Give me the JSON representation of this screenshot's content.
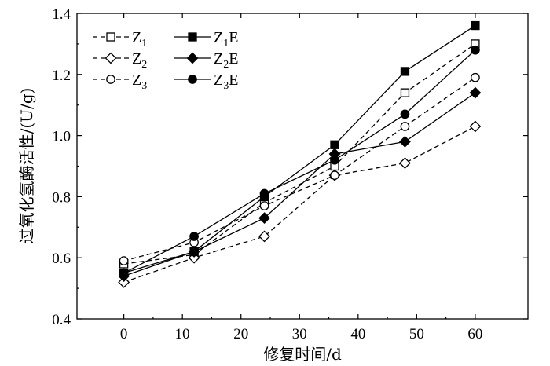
{
  "chart_data": {
    "type": "line",
    "title": "",
    "xlabel": "修复时间/d",
    "ylabel": "过氧化氢酶活性/(U/g)",
    "xlim": [
      -8,
      69
    ],
    "ylim": [
      0.4,
      1.4
    ],
    "xticks": [
      0,
      10,
      20,
      30,
      40,
      50,
      60
    ],
    "yticks": [
      0.4,
      0.6,
      0.8,
      1.0,
      1.2,
      1.4
    ],
    "xtick_labels": [
      "0",
      "10",
      "20",
      "30",
      "40",
      "50",
      "60"
    ],
    "ytick_labels": [
      "0.4",
      "0.6",
      "0.8",
      "1.0",
      "1.2",
      "1.4"
    ],
    "grid": false,
    "legend_position": "top-left",
    "x": [
      0,
      12,
      24,
      36,
      48,
      60
    ],
    "series": [
      {
        "name": "Z",
        "sub": "1",
        "suffix": "",
        "marker": "square",
        "filled": false,
        "dashed": true,
        "values": [
          0.58,
          0.61,
          0.78,
          0.9,
          1.14,
          1.3
        ]
      },
      {
        "name": "Z",
        "sub": "2",
        "suffix": "",
        "marker": "diamond",
        "filled": false,
        "dashed": true,
        "values": [
          0.52,
          0.6,
          0.67,
          0.87,
          0.91,
          1.03
        ]
      },
      {
        "name": "Z",
        "sub": "3",
        "suffix": "",
        "marker": "circle",
        "filled": false,
        "dashed": true,
        "values": [
          0.59,
          0.65,
          0.77,
          0.87,
          1.03,
          1.19
        ]
      },
      {
        "name": "Z",
        "sub": "1",
        "suffix": "E",
        "marker": "square",
        "filled": true,
        "dashed": false,
        "values": [
          0.55,
          0.62,
          0.8,
          0.97,
          1.21,
          1.36
        ]
      },
      {
        "name": "Z",
        "sub": "2",
        "suffix": "E",
        "marker": "diamond",
        "filled": true,
        "dashed": false,
        "values": [
          0.54,
          0.62,
          0.73,
          0.94,
          0.98,
          1.14
        ]
      },
      {
        "name": "Z",
        "sub": "3",
        "suffix": "E",
        "marker": "circle",
        "filled": true,
        "dashed": false,
        "values": [
          0.55,
          0.67,
          0.81,
          0.92,
          1.07,
          1.28
        ]
      }
    ],
    "colors": {
      "line": "#000000",
      "fill": "#000000",
      "background": "#ffffff"
    }
  }
}
